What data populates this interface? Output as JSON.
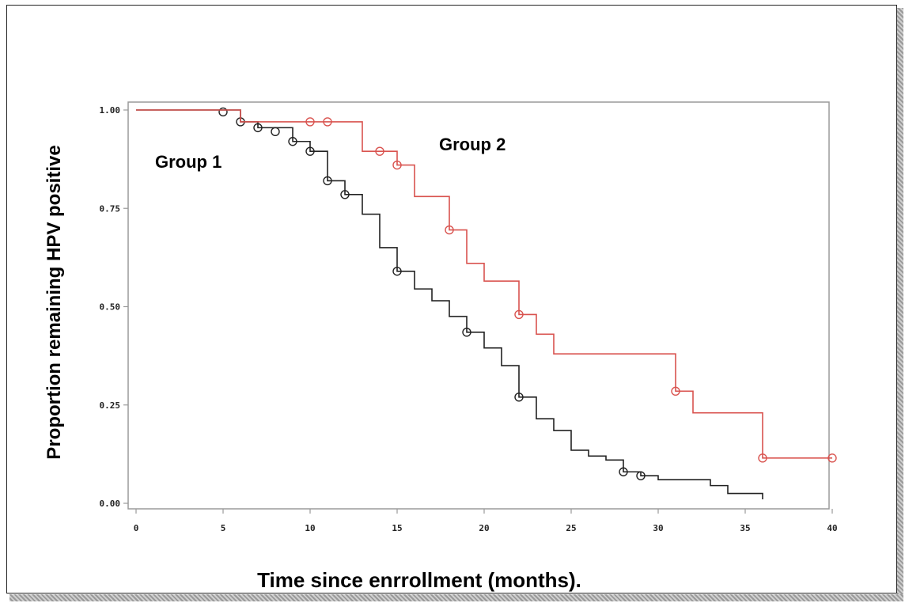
{
  "chart_data": {
    "type": "line",
    "subtype": "kaplan-meier step",
    "title": "",
    "xlabel": "Time since enrrollment (months).",
    "ylabel": "Proportion remaining HPV positive",
    "xlim": [
      0,
      40
    ],
    "ylim": [
      0,
      1
    ],
    "xticks": [
      "0",
      "5",
      "10",
      "15",
      "20",
      "25",
      "30",
      "35",
      "40"
    ],
    "yticks": [
      "0.00",
      "0.25",
      "0.50",
      "0.75",
      "1.00"
    ],
    "grid": false,
    "legend": "none",
    "annotations": [
      {
        "text": "Group 1",
        "series": "Group 1"
      },
      {
        "text": "Group 2",
        "series": "Group 2"
      }
    ],
    "series": [
      {
        "name": "Group 1",
        "color": "#222222",
        "steps": [
          [
            0,
            1.0
          ],
          [
            6,
            0.97
          ],
          [
            7,
            0.955
          ],
          [
            9,
            0.92
          ],
          [
            10,
            0.895
          ],
          [
            11,
            0.82
          ],
          [
            12,
            0.785
          ],
          [
            13,
            0.735
          ],
          [
            14,
            0.65
          ],
          [
            15,
            0.59
          ],
          [
            16,
            0.545
          ],
          [
            17,
            0.515
          ],
          [
            18,
            0.475
          ],
          [
            19,
            0.435
          ],
          [
            20,
            0.395
          ],
          [
            21,
            0.35
          ],
          [
            22,
            0.27
          ],
          [
            23,
            0.215
          ],
          [
            24,
            0.185
          ],
          [
            25,
            0.135
          ],
          [
            26,
            0.12
          ],
          [
            27,
            0.11
          ],
          [
            28,
            0.08
          ],
          [
            29,
            0.07
          ],
          [
            30,
            0.06
          ],
          [
            33,
            0.045
          ],
          [
            34,
            0.025
          ],
          [
            36,
            0.01
          ]
        ],
        "end": 36,
        "censored": [
          [
            5,
            0.995
          ],
          [
            6,
            0.97
          ],
          [
            7,
            0.955
          ],
          [
            8,
            0.945
          ],
          [
            9,
            0.92
          ],
          [
            10,
            0.895
          ],
          [
            11,
            0.82
          ],
          [
            12,
            0.785
          ],
          [
            15,
            0.59
          ],
          [
            19,
            0.435
          ],
          [
            22,
            0.27
          ],
          [
            28,
            0.08
          ],
          [
            29,
            0.07
          ]
        ]
      },
      {
        "name": "Group 2",
        "color": "#d9534f",
        "steps": [
          [
            0,
            1.0
          ],
          [
            6,
            0.97
          ],
          [
            13,
            0.895
          ],
          [
            15,
            0.86
          ],
          [
            16,
            0.78
          ],
          [
            18,
            0.695
          ],
          [
            19,
            0.61
          ],
          [
            20,
            0.565
          ],
          [
            22,
            0.48
          ],
          [
            23,
            0.43
          ],
          [
            24,
            0.38
          ],
          [
            31,
            0.285
          ],
          [
            32,
            0.23
          ],
          [
            36,
            0.115
          ]
        ],
        "end": 40,
        "censored": [
          [
            10,
            0.97
          ],
          [
            11,
            0.97
          ],
          [
            14,
            0.895
          ],
          [
            15,
            0.86
          ],
          [
            18,
            0.695
          ],
          [
            22,
            0.48
          ],
          [
            31,
            0.285
          ],
          [
            36,
            0.115
          ],
          [
            40,
            0.115
          ]
        ]
      }
    ]
  }
}
